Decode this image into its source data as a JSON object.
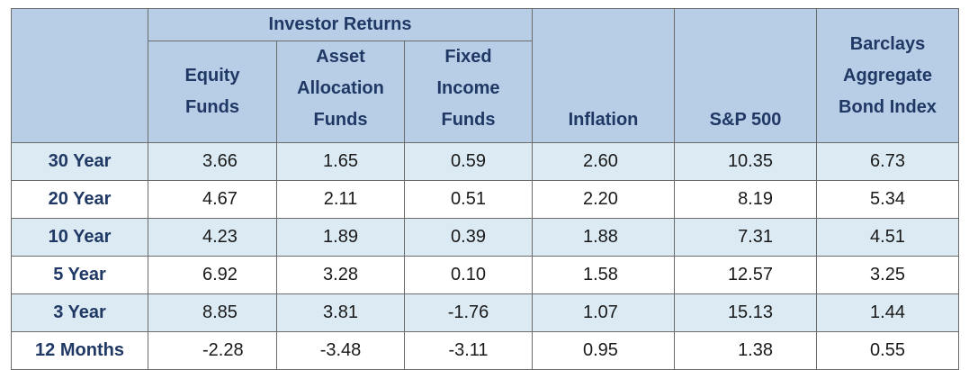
{
  "header": {
    "group_label": "Investor Returns",
    "equity_funds": "Equity Funds",
    "asset_allocation_funds": "Asset Allocation Funds",
    "fixed_income_funds": "Fixed Income Funds",
    "inflation": "Inflation",
    "sp500": "S&P 500",
    "barclays": "Barclays Aggregate Bond Index"
  },
  "rows": [
    {
      "label": "30 Year",
      "equity": "3.66",
      "asset": "1.65",
      "fixed": "0.59",
      "inflation": "2.60",
      "sp500": "10.35",
      "barclays": "6.73"
    },
    {
      "label": "20 Year",
      "equity": "4.67",
      "asset": "2.11",
      "fixed": "0.51",
      "inflation": "2.20",
      "sp500": "8.19",
      "barclays": "5.34"
    },
    {
      "label": "10 Year",
      "equity": "4.23",
      "asset": "1.89",
      "fixed": "0.39",
      "inflation": "1.88",
      "sp500": "7.31",
      "barclays": "4.51"
    },
    {
      "label": "5 Year",
      "equity": "6.92",
      "asset": "3.28",
      "fixed": "0.10",
      "inflation": "1.58",
      "sp500": "12.57",
      "barclays": "3.25"
    },
    {
      "label": "3 Year",
      "equity": "8.85",
      "asset": "3.81",
      "fixed": "-1.76",
      "inflation": "1.07",
      "sp500": "15.13",
      "barclays": "1.44"
    },
    {
      "label": "12 Months",
      "equity": "-2.28",
      "asset": "-3.48",
      "fixed": "-3.11",
      "inflation": "0.95",
      "sp500": "1.38",
      "barclays": "0.55"
    }
  ]
}
